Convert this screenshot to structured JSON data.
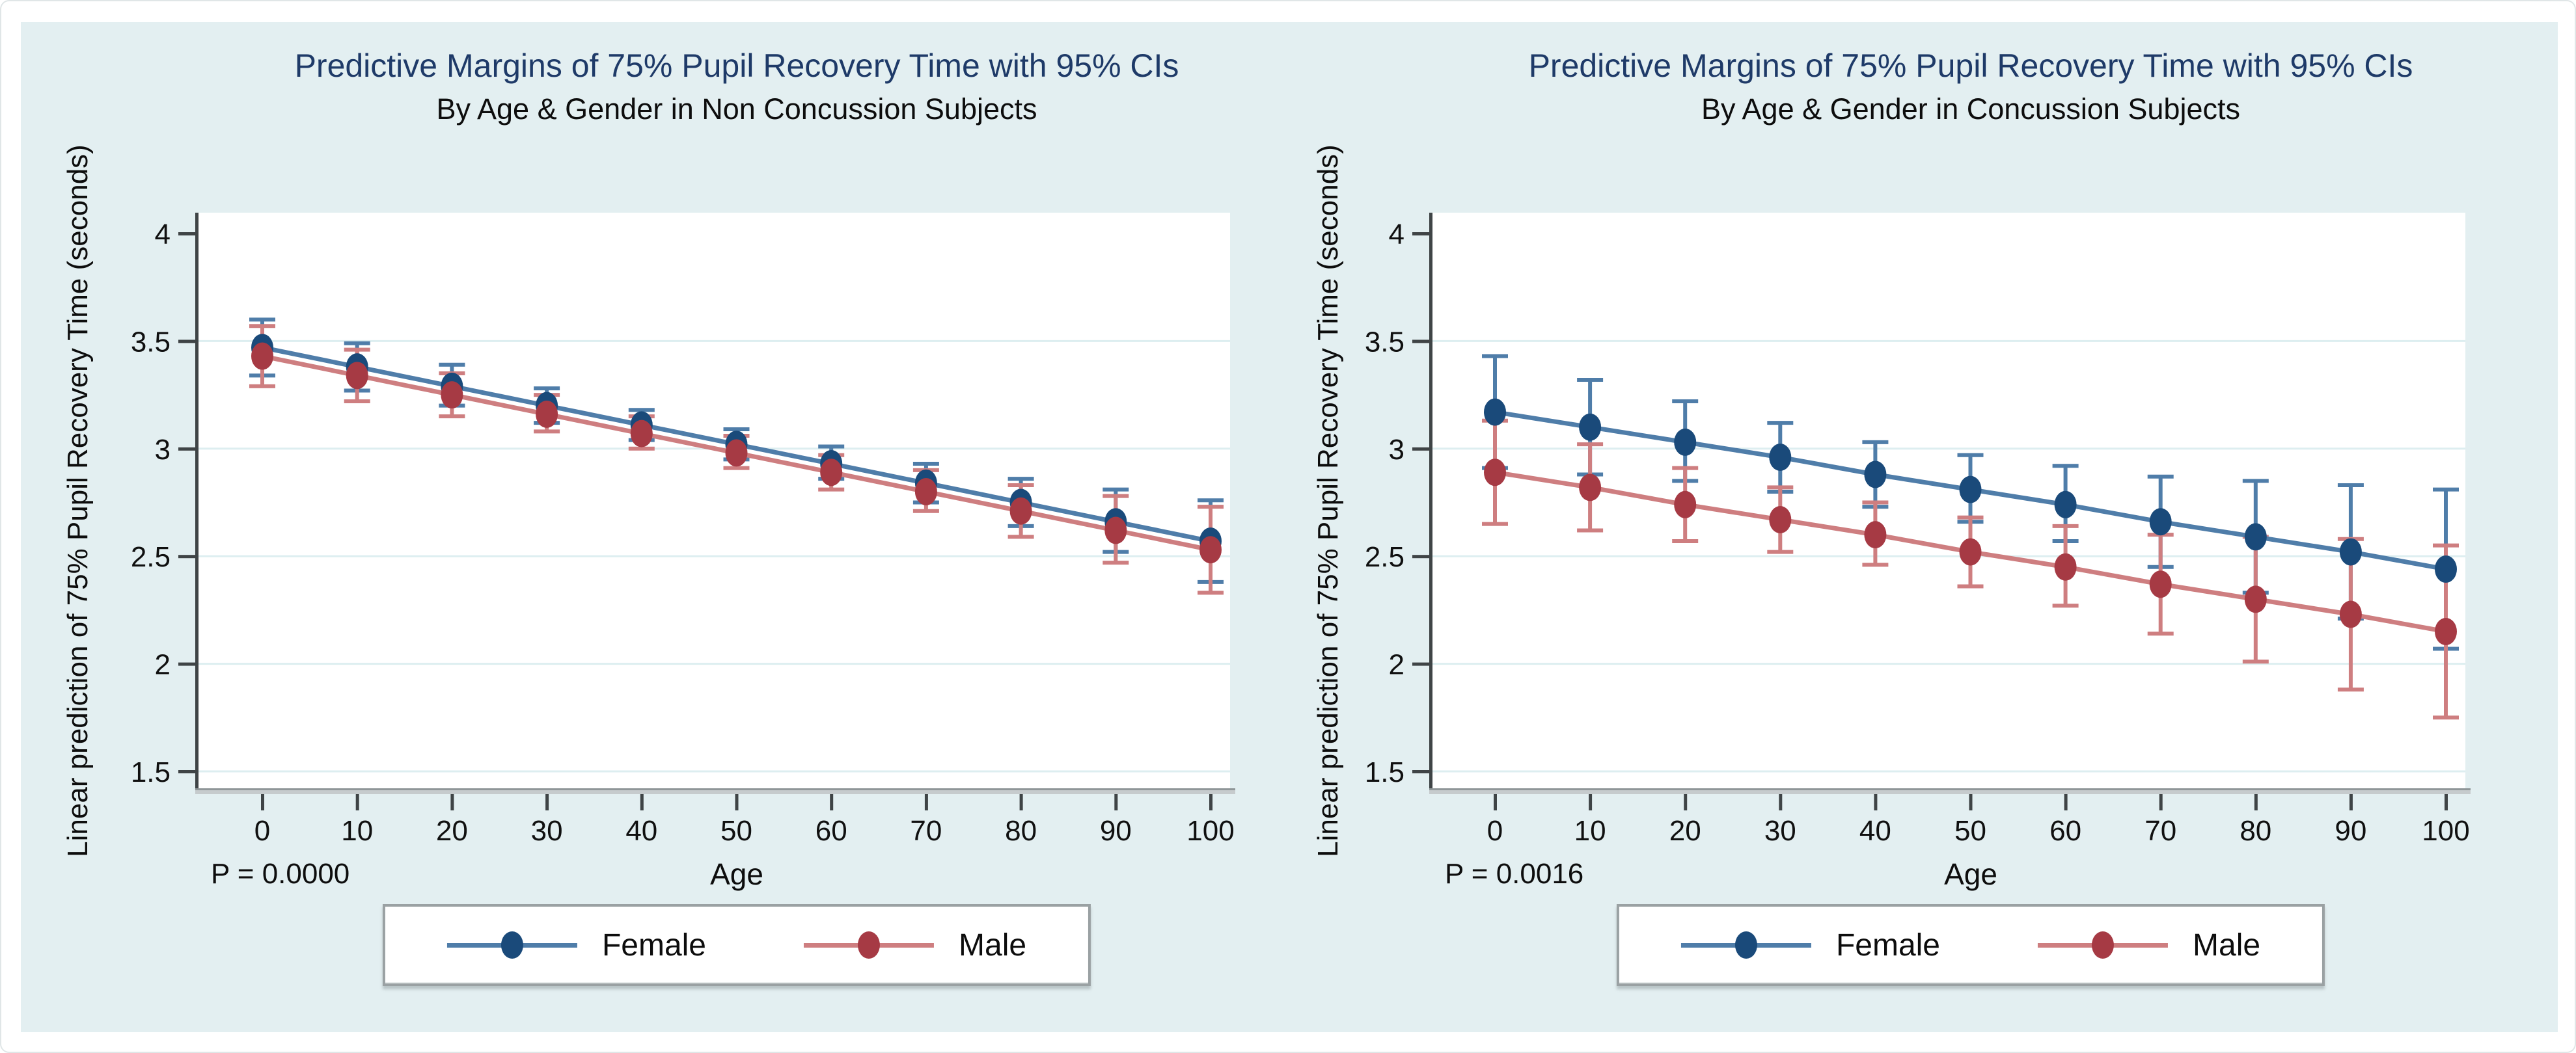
{
  "figure": {
    "background_color": "#e3eff1",
    "plot_background_color": "#ffffff",
    "gridline_color": "#ddeef0",
    "axis_color": "#3f4446",
    "title_color": "#1e3a68"
  },
  "legend": {
    "items": [
      {
        "label": "Female",
        "line_color": "#4f7da9",
        "marker_color": "#1a4a7a"
      },
      {
        "label": "Male",
        "line_color": "#ce7e80",
        "marker_color": "#a63a44"
      }
    ]
  },
  "chart_data": [
    {
      "type": "line",
      "title": "Predictive Margins of 75% Pupil Recovery Time with 95% CIs",
      "subtitle": "By Age & Gender in Non Concussion Subjects",
      "xlabel": "Age",
      "ylabel": "Linear prediction of 75% Pupil Recovery Time (seconds)",
      "p_label": "P = 0.0000",
      "x": [
        0,
        10,
        20,
        30,
        40,
        50,
        60,
        70,
        80,
        90,
        100
      ],
      "xticks": [
        0,
        10,
        20,
        30,
        40,
        50,
        60,
        70,
        80,
        90,
        100
      ],
      "ylim": [
        1.5,
        4
      ],
      "yticks": [
        1.5,
        2,
        2.5,
        3,
        3.5,
        4
      ],
      "grid": true,
      "legend_position": "bottom",
      "error_bars": "95% CI",
      "series": [
        {
          "name": "Female",
          "line_color": "#4f7da9",
          "marker_color": "#1a4a7a",
          "values": [
            3.47,
            3.38,
            3.29,
            3.2,
            3.11,
            3.02,
            2.93,
            2.84,
            2.75,
            2.66,
            2.57
          ],
          "ci_low": [
            3.34,
            3.27,
            3.2,
            3.12,
            3.04,
            2.95,
            2.86,
            2.75,
            2.64,
            2.52,
            2.38
          ],
          "ci_high": [
            3.6,
            3.49,
            3.39,
            3.28,
            3.18,
            3.09,
            3.01,
            2.93,
            2.86,
            2.81,
            2.76
          ]
        },
        {
          "name": "Male",
          "line_color": "#ce7e80",
          "marker_color": "#a63a44",
          "values": [
            3.43,
            3.34,
            3.25,
            3.16,
            3.07,
            2.98,
            2.89,
            2.8,
            2.71,
            2.62,
            2.53
          ],
          "ci_low": [
            3.29,
            3.22,
            3.15,
            3.08,
            3.0,
            2.91,
            2.81,
            2.71,
            2.59,
            2.47,
            2.33
          ],
          "ci_high": [
            3.57,
            3.46,
            3.35,
            3.25,
            3.15,
            3.06,
            2.97,
            2.9,
            2.83,
            2.78,
            2.73
          ]
        }
      ]
    },
    {
      "type": "line",
      "title": "Predictive Margins of 75% Pupil Recovery Time with 95% CIs",
      "subtitle": "By Age & Gender in Concussion Subjects",
      "xlabel": "Age",
      "ylabel": "Linear prediction of 75% Pupil Recovery Time (seconds)",
      "p_label": "P = 0.0016",
      "x": [
        0,
        10,
        20,
        30,
        40,
        50,
        60,
        70,
        80,
        90,
        100
      ],
      "xticks": [
        0,
        10,
        20,
        30,
        40,
        50,
        60,
        70,
        80,
        90,
        100
      ],
      "ylim": [
        1.5,
        4
      ],
      "yticks": [
        1.5,
        2,
        2.5,
        3,
        3.5,
        4
      ],
      "grid": true,
      "legend_position": "bottom",
      "error_bars": "95% CI",
      "series": [
        {
          "name": "Female",
          "line_color": "#4f7da9",
          "marker_color": "#1a4a7a",
          "values": [
            3.17,
            3.1,
            3.03,
            2.96,
            2.88,
            2.81,
            2.74,
            2.66,
            2.59,
            2.52,
            2.44
          ],
          "ci_low": [
            2.91,
            2.88,
            2.85,
            2.8,
            2.73,
            2.66,
            2.57,
            2.45,
            2.33,
            2.21,
            2.07
          ],
          "ci_high": [
            3.43,
            3.32,
            3.22,
            3.12,
            3.03,
            2.97,
            2.92,
            2.87,
            2.85,
            2.83,
            2.81
          ]
        },
        {
          "name": "Male",
          "line_color": "#ce7e80",
          "marker_color": "#a63a44",
          "values": [
            2.89,
            2.82,
            2.74,
            2.67,
            2.6,
            2.52,
            2.45,
            2.37,
            2.3,
            2.23,
            2.15
          ],
          "ci_low": [
            2.65,
            2.62,
            2.57,
            2.52,
            2.46,
            2.36,
            2.27,
            2.14,
            2.01,
            1.88,
            1.75
          ],
          "ci_high": [
            3.13,
            3.02,
            2.91,
            2.82,
            2.75,
            2.68,
            2.64,
            2.6,
            2.59,
            2.58,
            2.55
          ]
        }
      ]
    }
  ]
}
